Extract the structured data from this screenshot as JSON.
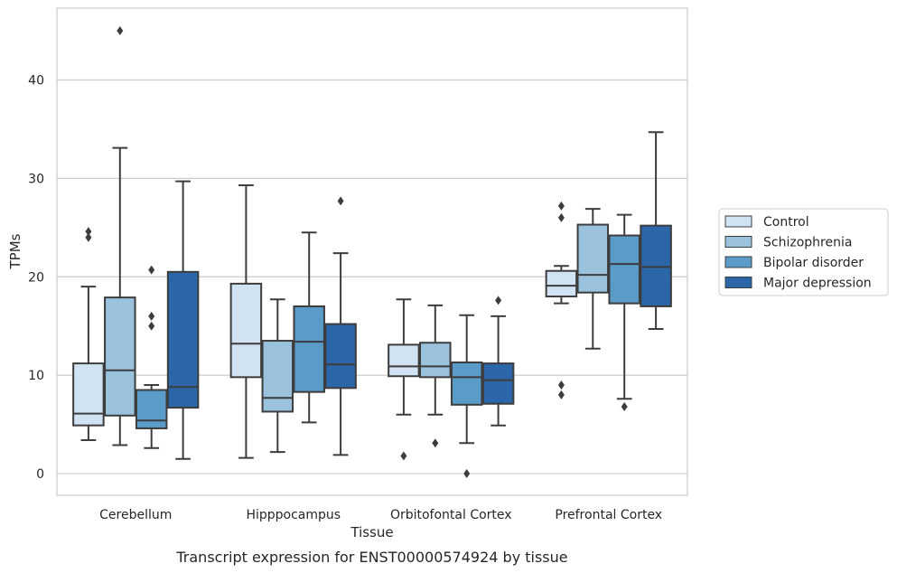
{
  "chart_data": {
    "type": "box",
    "caption": "Transcript expression for ENST00000574924 by tissue",
    "xlabel": "Tissue",
    "ylabel": "TPMs",
    "ylim": [
      -2.2,
      47.3
    ],
    "yticks": [
      0,
      10,
      20,
      30,
      40
    ],
    "grid": "horizontal",
    "legend_position": "right",
    "categories": [
      "Cerebellum",
      "Hipppocampus",
      "Orbitofontal Cortex",
      "Prefrontal Cortex"
    ],
    "series": [
      {
        "name": "Control",
        "color": "#d1e2f2",
        "boxes": [
          {
            "whislo": 3.4,
            "q1": 4.9,
            "med": 6.1,
            "q3": 11.2,
            "whishi": 19.0,
            "fliers": [
              24.0,
              24.6
            ]
          },
          {
            "whislo": 1.6,
            "q1": 9.8,
            "med": 13.2,
            "q3": 19.3,
            "whishi": 29.3,
            "fliers": []
          },
          {
            "whislo": 6.0,
            "q1": 9.9,
            "med": 10.9,
            "q3": 13.1,
            "whishi": 17.7,
            "fliers": [
              1.8
            ]
          },
          {
            "whislo": 17.3,
            "q1": 18.0,
            "med": 19.1,
            "q3": 20.6,
            "whishi": 21.1,
            "fliers": [
              8.0,
              9.0,
              26.0,
              27.2
            ]
          }
        ]
      },
      {
        "name": "Schizophrenia",
        "color": "#9ac2dc",
        "boxes": [
          {
            "whislo": 2.9,
            "q1": 5.9,
            "med": 10.5,
            "q3": 17.9,
            "whishi": 33.1,
            "fliers": [
              45.0
            ]
          },
          {
            "whislo": 2.2,
            "q1": 6.3,
            "med": 7.7,
            "q3": 13.5,
            "whishi": 17.7,
            "fliers": []
          },
          {
            "whislo": 6.0,
            "q1": 9.8,
            "med": 10.9,
            "q3": 13.3,
            "whishi": 17.1,
            "fliers": [
              3.1
            ]
          },
          {
            "whislo": 12.7,
            "q1": 18.4,
            "med": 20.2,
            "q3": 25.3,
            "whishi": 26.9,
            "fliers": []
          }
        ]
      },
      {
        "name": "Bipolar disorder",
        "color": "#5a9bc8",
        "boxes": [
          {
            "whislo": 2.6,
            "q1": 4.6,
            "med": 5.4,
            "q3": 8.5,
            "whishi": 9.0,
            "fliers": [
              15.0,
              16.0,
              20.7
            ]
          },
          {
            "whislo": 5.2,
            "q1": 8.3,
            "med": 13.4,
            "q3": 17.0,
            "whishi": 24.5,
            "fliers": []
          },
          {
            "whislo": 3.1,
            "q1": 7.0,
            "med": 9.8,
            "q3": 11.3,
            "whishi": 16.1,
            "fliers": [
              0.0
            ]
          },
          {
            "whislo": 7.6,
            "q1": 17.3,
            "med": 21.3,
            "q3": 24.2,
            "whishi": 26.3,
            "fliers": [
              6.8
            ]
          }
        ]
      },
      {
        "name": "Major depression",
        "color": "#2a66a8",
        "boxes": [
          {
            "whislo": 1.5,
            "q1": 6.7,
            "med": 8.8,
            "q3": 20.5,
            "whishi": 29.7,
            "fliers": []
          },
          {
            "whislo": 1.9,
            "q1": 8.7,
            "med": 11.1,
            "q3": 15.2,
            "whishi": 22.4,
            "fliers": [
              27.7
            ]
          },
          {
            "whislo": 4.9,
            "q1": 7.1,
            "med": 9.5,
            "q3": 11.2,
            "whishi": 16.0,
            "fliers": [
              17.6
            ]
          },
          {
            "whislo": 14.7,
            "q1": 17.0,
            "med": 21.0,
            "q3": 25.2,
            "whishi": 34.7,
            "fliers": []
          }
        ]
      }
    ]
  }
}
